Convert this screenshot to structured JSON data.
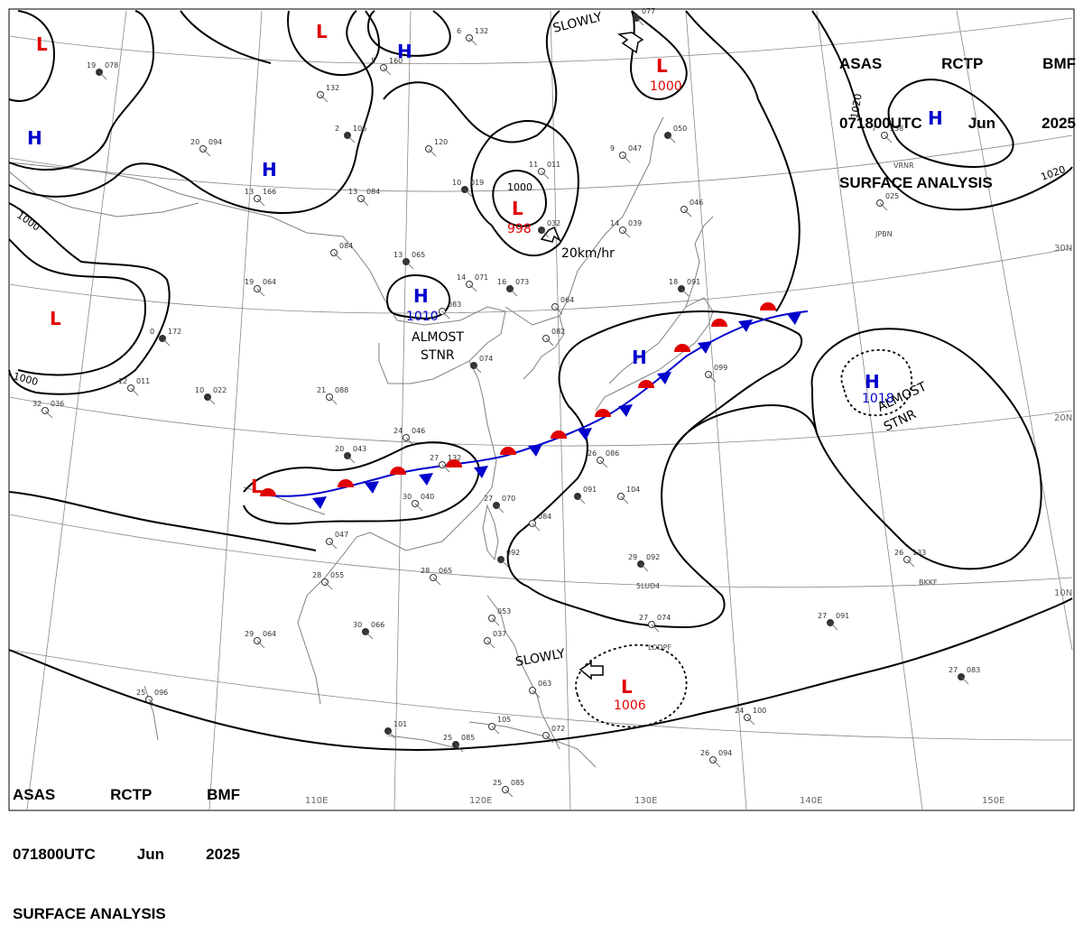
{
  "header": {
    "line1": [
      "ASAS",
      "RCTP",
      "BMF"
    ],
    "line2": [
      "071800UTC",
      "Jun",
      "2025"
    ],
    "line3": "SURFACE ANALYSIS"
  },
  "lat_labels": [
    "30N",
    "20N",
    "10N"
  ],
  "lon_labels": [
    "110E",
    "120E",
    "130E",
    "140E",
    "150E"
  ],
  "isobar_labels": [
    "1000",
    "1000",
    "1000",
    "1020",
    "1020"
  ],
  "pressure_systems": [
    {
      "type": "L",
      "value": ""
    },
    {
      "type": "L",
      "value": ""
    },
    {
      "type": "H",
      "value": ""
    },
    {
      "type": "H",
      "value": ""
    },
    {
      "type": "H",
      "value": ""
    },
    {
      "type": "L",
      "value": "1000"
    },
    {
      "type": "H",
      "value": ""
    },
    {
      "type": "L",
      "value": "998"
    },
    {
      "type": "L",
      "value": ""
    },
    {
      "type": "H",
      "value": "1010"
    },
    {
      "type": "H",
      "value": ""
    },
    {
      "type": "H",
      "value": "1018"
    },
    {
      "type": "L",
      "value": ""
    },
    {
      "type": "L",
      "value": "1006"
    }
  ],
  "annotations": {
    "slowly_top": "SLOWLY",
    "speed": "20km/hr",
    "almost_stnr_1": "ALMOST",
    "almost_stnr_2": "STNR",
    "almost_stnr_east": "ALMOST",
    "stnr_east": "STNR",
    "slowly_bottom": "SLOWLY"
  },
  "stations": [
    {
      "temp": "19",
      "pres": "078"
    },
    {
      "temp": "",
      "pres": "132"
    },
    {
      "temp": "6",
      "pres": "132"
    },
    {
      "temp": "2",
      "pres": "106"
    },
    {
      "temp": "",
      "pres": "120"
    },
    {
      "temp": "5",
      "pres": "160"
    },
    {
      "temp": "",
      "pres": "077"
    },
    {
      "temp": "20",
      "pres": "094"
    },
    {
      "temp": "13",
      "pres": "166"
    },
    {
      "temp": "10",
      "pres": "019"
    },
    {
      "temp": "11",
      "pres": "011"
    },
    {
      "temp": "9",
      "pres": "047"
    },
    {
      "temp": "",
      "pres": "050"
    },
    {
      "temp": "13",
      "pres": "084"
    },
    {
      "temp": "",
      "pres": "084"
    },
    {
      "temp": "",
      "pres": "032"
    },
    {
      "temp": "14",
      "pres": "039"
    },
    {
      "temp": "",
      "pres": "046"
    },
    {
      "temp": "13",
      "pres": "065"
    },
    {
      "temp": "19",
      "pres": "064"
    },
    {
      "temp": "14",
      "pres": "071"
    },
    {
      "temp": "16",
      "pres": "073"
    },
    {
      "temp": "",
      "pres": "083"
    },
    {
      "temp": "",
      "pres": "064"
    },
    {
      "temp": "18",
      "pres": "091"
    },
    {
      "temp": "7",
      "pres": "238"
    },
    {
      "temp": "",
      "pres": "025"
    },
    {
      "temp": "0",
      "pres": "172"
    },
    {
      "temp": "21",
      "pres": "088"
    },
    {
      "temp": "12",
      "pres": "011"
    },
    {
      "temp": "10",
      "pres": "022"
    },
    {
      "temp": "32",
      "pres": "036"
    },
    {
      "temp": "",
      "pres": "082"
    },
    {
      "temp": "",
      "pres": "074"
    },
    {
      "temp": "",
      "pres": "099"
    },
    {
      "temp": "24",
      "pres": "046"
    },
    {
      "temp": "20",
      "pres": "043"
    },
    {
      "temp": "27",
      "pres": "132"
    },
    {
      "temp": "26",
      "pres": "086"
    },
    {
      "temp": "",
      "pres": "091"
    },
    {
      "temp": "",
      "pres": "104"
    },
    {
      "temp": "30",
      "pres": "040"
    },
    {
      "temp": "27",
      "pres": "070"
    },
    {
      "temp": "",
      "pres": "084"
    },
    {
      "temp": "",
      "pres": "047"
    },
    {
      "temp": "",
      "pres": "092"
    },
    {
      "temp": "28",
      "pres": "055"
    },
    {
      "temp": "28",
      "pres": "065"
    },
    {
      "temp": "29",
      "pres": "092"
    },
    {
      "temp": "26",
      "pres": "133"
    },
    {
      "temp": "29",
      "pres": "064"
    },
    {
      "temp": "30",
      "pres": "066"
    },
    {
      "temp": "",
      "pres": "053"
    },
    {
      "temp": "27",
      "pres": "074"
    },
    {
      "temp": "27",
      "pres": "091"
    },
    {
      "temp": "",
      "pres": "037"
    },
    {
      "temp": "",
      "pres": "063"
    },
    {
      "temp": "27",
      "pres": "083"
    },
    {
      "temp": "25",
      "pres": "096"
    },
    {
      "temp": "24",
      "pres": "100"
    },
    {
      "temp": "",
      "pres": "101"
    },
    {
      "temp": "",
      "pres": "105"
    },
    {
      "temp": "",
      "pres": "072"
    },
    {
      "temp": "25",
      "pres": "085"
    },
    {
      "temp": "26",
      "pres": "094"
    },
    {
      "temp": "25",
      "pres": "085"
    }
  ],
  "station_ids": [
    "JPBN",
    "VRNR",
    "5LUD4",
    "BKKF",
    "LODPF"
  ],
  "colors": {
    "high": "#0000cc",
    "low": "#e00000",
    "warm_front": "#e00000",
    "cold_front": "#0000cc",
    "lines": "#000000",
    "grid": "#888888",
    "coast": "#808080"
  }
}
